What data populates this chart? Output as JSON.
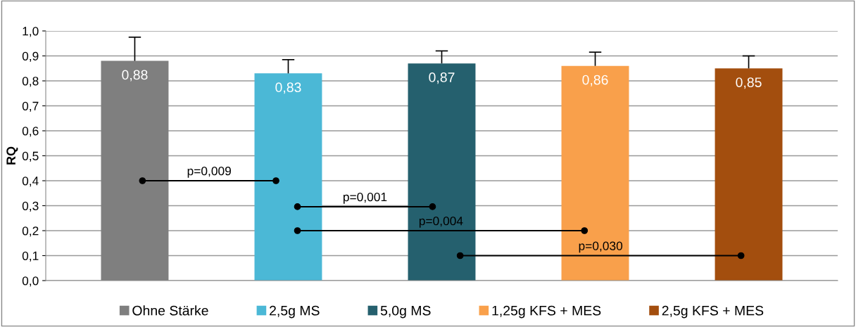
{
  "chart_data": {
    "type": "bar",
    "ylabel": "RQ",
    "categories": [
      null,
      null,
      null,
      null,
      null
    ],
    "series": [
      {
        "name": "Ohne Stärke",
        "color": "#7f7f7f",
        "values": [
          0.88,
          null,
          null,
          null,
          null
        ],
        "value_labels": [
          "0,88",
          null,
          null,
          null,
          null
        ],
        "errors": [
          [
            0.88,
            0.975
          ],
          null,
          null,
          null,
          null
        ]
      },
      {
        "name": "2,5g MS",
        "color": "#4bb8d6",
        "values": [
          null,
          0.83,
          null,
          null,
          null
        ],
        "value_labels": [
          null,
          "0,83",
          null,
          null,
          null
        ],
        "errors": [
          null,
          [
            0.83,
            0.885
          ],
          null,
          null,
          null
        ]
      },
      {
        "name": "5,0g MS",
        "color": "#25606e",
        "values": [
          null,
          null,
          0.87,
          null,
          null
        ],
        "value_labels": [
          null,
          null,
          "0,87",
          null,
          null
        ],
        "errors": [
          null,
          null,
          [
            0.87,
            0.92
          ],
          null,
          null
        ]
      },
      {
        "name": "1,25g KFS + MES",
        "color": "#f9a04b",
        "values": [
          null,
          null,
          null,
          0.86,
          null
        ],
        "value_labels": [
          null,
          null,
          null,
          "0,86",
          null
        ],
        "errors": [
          null,
          null,
          null,
          [
            0.86,
            0.915
          ],
          null
        ]
      },
      {
        "name": "2,5g KFS + MES",
        "color": "#a34e0e",
        "values": [
          null,
          null,
          null,
          null,
          0.85
        ],
        "value_labels": [
          null,
          null,
          null,
          null,
          "0,85"
        ],
        "errors": [
          null,
          null,
          null,
          null,
          [
            0.85,
            0.9
          ]
        ]
      }
    ],
    "ylim": [
      0,
      1
    ],
    "yticks": [
      {
        "value": 0,
        "label": "0,0"
      },
      {
        "value": 0.1,
        "label": "0,1"
      },
      {
        "value": 0.2,
        "label": "0,2"
      },
      {
        "value": 0.3,
        "label": "0,3"
      },
      {
        "value": 0.4,
        "label": "0,4"
      },
      {
        "value": 0.5,
        "label": "0,5"
      },
      {
        "value": 0.6,
        "label": "0,6"
      },
      {
        "value": 0.7,
        "label": "0,7"
      },
      {
        "value": 0.8,
        "label": "0,8"
      },
      {
        "value": 0.9,
        "label": "0,9"
      },
      {
        "value": 1,
        "label": "1,0"
      }
    ],
    "annotations": [
      "p=0,009",
      "p=0,001",
      "p=0,004",
      "p=0,030"
    ],
    "grid": "y",
    "legend": "bottom",
    "tick_labels": "y"
  }
}
